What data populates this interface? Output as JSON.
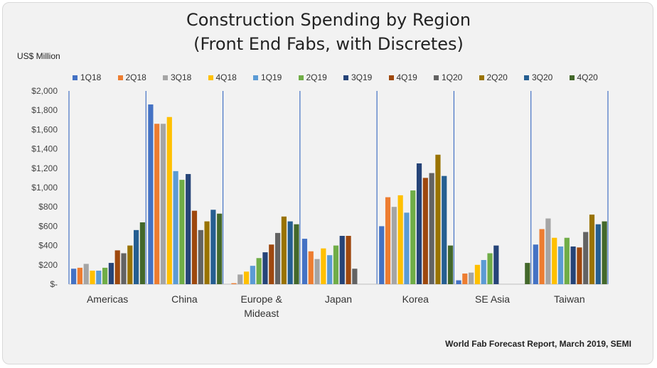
{
  "title_line1": "Construction Spending by Region",
  "title_line2": "(Front End Fabs, with Discretes)",
  "unit_label": "US$ Million",
  "source": "World Fab Forecast Report, March 2019, SEMI",
  "chart_data": {
    "type": "bar",
    "title": "Construction Spending by Region (Front End Fabs, with Discretes)",
    "ylabel": "US$ Million",
    "ylim": [
      0,
      2000
    ],
    "yticks": [
      0,
      200,
      400,
      600,
      800,
      1000,
      1200,
      1400,
      1600,
      1800,
      2000
    ],
    "ytick_labels": [
      "$-",
      "$200",
      "$400",
      "$600",
      "$800",
      "$1,000",
      "$1,200",
      "$1,400",
      "$1,600",
      "$1,800",
      "$2,000"
    ],
    "legend_position": "top",
    "categories": [
      "Americas",
      "China",
      "Europe & Mideast",
      "Japan",
      "Korea",
      "SE Asia",
      "Taiwan"
    ],
    "category_label_lines": [
      [
        "Americas"
      ],
      [
        "China"
      ],
      [
        "Europe &",
        "Mideast"
      ],
      [
        "Japan"
      ],
      [
        "Korea"
      ],
      [
        "SE Asia"
      ],
      [
        "Taiwan"
      ]
    ],
    "series": [
      {
        "name": "1Q18",
        "color": "#4472c4",
        "values": [
          160,
          1860,
          0,
          470,
          600,
          40,
          410
        ]
      },
      {
        "name": "2Q18",
        "color": "#ed7d31",
        "values": [
          170,
          1660,
          10,
          340,
          900,
          110,
          570
        ]
      },
      {
        "name": "3Q18",
        "color": "#a5a5a5",
        "values": [
          210,
          1660,
          100,
          260,
          800,
          120,
          680
        ]
      },
      {
        "name": "4Q18",
        "color": "#ffc000",
        "values": [
          140,
          1730,
          130,
          370,
          920,
          200,
          480
        ]
      },
      {
        "name": "1Q19",
        "color": "#5b9bd5",
        "values": [
          140,
          1170,
          190,
          300,
          740,
          250,
          390
        ]
      },
      {
        "name": "2Q19",
        "color": "#70ad47",
        "values": [
          170,
          1080,
          270,
          400,
          970,
          320,
          480
        ]
      },
      {
        "name": "3Q19",
        "color": "#264478",
        "values": [
          220,
          1140,
          330,
          500,
          1250,
          400,
          390
        ]
      },
      {
        "name": "4Q19",
        "color": "#9e480e",
        "values": [
          350,
          760,
          410,
          500,
          1100,
          0,
          380
        ]
      },
      {
        "name": "1Q20",
        "color": "#636363",
        "values": [
          320,
          560,
          530,
          160,
          1150,
          0,
          540
        ]
      },
      {
        "name": "2Q20",
        "color": "#997300",
        "values": [
          400,
          650,
          700,
          0,
          1340,
          0,
          720
        ]
      },
      {
        "name": "3Q20",
        "color": "#255e91",
        "values": [
          560,
          770,
          650,
          0,
          1120,
          0,
          620
        ]
      },
      {
        "name": "4Q20",
        "color": "#43682b",
        "values": [
          640,
          730,
          620,
          0,
          400,
          220,
          650
        ]
      }
    ],
    "grid": false
  }
}
